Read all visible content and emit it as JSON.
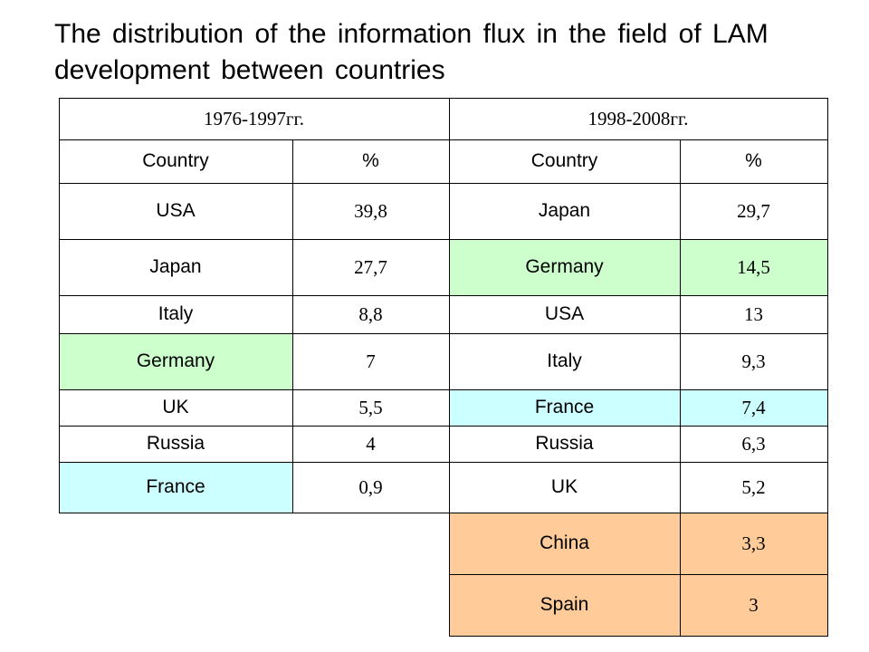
{
  "title": "The distribution of the information flux in the field of LAM development between countries",
  "periods": [
    "1976-1997гг.",
    "1998-2008гг."
  ],
  "headers": [
    "Country",
    "%",
    "Country",
    "%"
  ],
  "rows_1976_1997": [
    {
      "country": "USA",
      "percent": "39,8",
      "highlight": ""
    },
    {
      "country": "Japan",
      "percent": "27,7",
      "highlight": ""
    },
    {
      "country": "Italy",
      "percent": "8,8",
      "highlight": ""
    },
    {
      "country": "Germany",
      "percent": "7",
      "highlight": "#ccffcc"
    },
    {
      "country": "UK",
      "percent": "5,5",
      "highlight": ""
    },
    {
      "country": "Russia",
      "percent": "4",
      "highlight": ""
    },
    {
      "country": "France",
      "percent": "0,9",
      "highlight": "#ccffff"
    }
  ],
  "rows_1998_2008": [
    {
      "country": "Japan",
      "percent": "29,7",
      "highlight": ""
    },
    {
      "country": "Germany",
      "percent": "14,5",
      "highlight": "#ccffcc"
    },
    {
      "country": "USA",
      "percent": "13",
      "highlight": ""
    },
    {
      "country": "Italy",
      "percent": "9,3",
      "highlight": ""
    },
    {
      "country": "France",
      "percent": "7,4",
      "highlight": "#ccffff"
    },
    {
      "country": "Russia",
      "percent": "6,3",
      "highlight": ""
    },
    {
      "country": "UK",
      "percent": "5,2",
      "highlight": ""
    },
    {
      "country": "China",
      "percent": "3,3",
      "highlight": "#ffcc99"
    },
    {
      "country": "Spain",
      "percent": "3",
      "highlight": "#ffcc99"
    }
  ]
}
